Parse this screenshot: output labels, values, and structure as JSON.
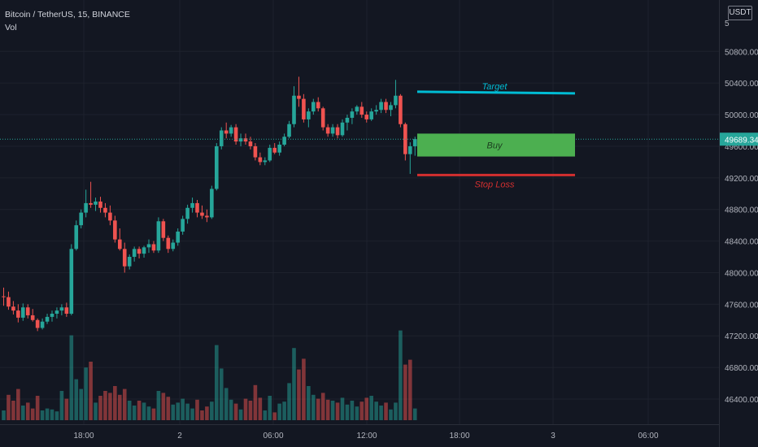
{
  "header": {
    "symbol": "Bitcoin / TetherUS, 15, BINANCE",
    "indicator": "Vol"
  },
  "currency": "USDT",
  "colors": {
    "bg": "#131722",
    "grid": "#1e222d",
    "up": "#26a69a",
    "down": "#ef5350",
    "target": "#00bcd4",
    "buy": "#4caf50",
    "stop": "#d32f2f",
    "price_line": "#26a69a"
  },
  "chart_data": {
    "type": "candlestick",
    "y_axis": {
      "ticks": [
        46400,
        46800,
        47200,
        47600,
        48000,
        48400,
        48800,
        49200,
        49600,
        50000,
        50400,
        50800
      ],
      "range": [
        46050,
        51050
      ],
      "side": "right"
    },
    "x_axis": {
      "tick_labels": [
        "18:00",
        "2",
        "06:00",
        "12:00",
        "18:00",
        "3",
        "06:00"
      ]
    },
    "last_price": "49689.34",
    "annotations": [
      {
        "label": "Target",
        "price": 50280
      },
      {
        "label": "Buy",
        "price_top": 49760,
        "price_bottom": 49470
      },
      {
        "label": "Stop Loss",
        "price": 49235
      }
    ],
    "candles": [
      [
        47700,
        47810,
        47580,
        47690
      ],
      [
        47690,
        47760,
        47530,
        47570
      ],
      [
        47570,
        47640,
        47470,
        47520
      ],
      [
        47520,
        47600,
        47370,
        47430
      ],
      [
        47430,
        47610,
        47390,
        47560
      ],
      [
        47560,
        47600,
        47420,
        47460
      ],
      [
        47460,
        47540,
        47380,
        47400
      ],
      [
        47400,
        47420,
        47260,
        47300
      ],
      [
        47300,
        47420,
        47280,
        47380
      ],
      [
        47380,
        47480,
        47350,
        47440
      ],
      [
        47440,
        47520,
        47380,
        47480
      ],
      [
        47480,
        47560,
        47420,
        47520
      ],
      [
        47520,
        47600,
        47460,
        47560
      ],
      [
        47560,
        47620,
        47440,
        47480
      ],
      [
        47480,
        48360,
        47460,
        48300
      ],
      [
        48300,
        48660,
        48280,
        48600
      ],
      [
        48600,
        48800,
        48560,
        48760
      ],
      [
        48760,
        49050,
        48700,
        48880
      ],
      [
        48880,
        49150,
        48820,
        48860
      ],
      [
        48860,
        48950,
        48780,
        48900
      ],
      [
        48900,
        48960,
        48760,
        48820
      ],
      [
        48820,
        48880,
        48700,
        48760
      ],
      [
        48760,
        48850,
        48600,
        48660
      ],
      [
        48660,
        48720,
        48380,
        48420
      ],
      [
        48420,
        48560,
        48280,
        48300
      ],
      [
        48300,
        48380,
        48000,
        48080
      ],
      [
        48080,
        48230,
        48040,
        48200
      ],
      [
        48200,
        48330,
        48140,
        48300
      ],
      [
        48300,
        48330,
        48180,
        48240
      ],
      [
        48240,
        48340,
        48190,
        48320
      ],
      [
        48320,
        48420,
        48250,
        48360
      ],
      [
        48360,
        48400,
        48250,
        48280
      ],
      [
        48280,
        48700,
        48250,
        48650
      ],
      [
        48650,
        48680,
        48400,
        48440
      ],
      [
        48440,
        48470,
        48250,
        48300
      ],
      [
        48300,
        48420,
        48270,
        48380
      ],
      [
        48380,
        48560,
        48340,
        48520
      ],
      [
        48520,
        48720,
        48480,
        48680
      ],
      [
        48680,
        48860,
        48620,
        48820
      ],
      [
        48820,
        48950,
        48760,
        48880
      ],
      [
        48880,
        48920,
        48700,
        48760
      ],
      [
        48760,
        48850,
        48680,
        48720
      ],
      [
        48720,
        48800,
        48640,
        48700
      ],
      [
        48700,
        49100,
        48680,
        49060
      ],
      [
        49060,
        49640,
        49040,
        49600
      ],
      [
        49600,
        49840,
        49560,
        49800
      ],
      [
        49800,
        49900,
        49700,
        49760
      ],
      [
        49760,
        49870,
        49720,
        49840
      ],
      [
        49840,
        49880,
        49620,
        49660
      ],
      [
        49660,
        49760,
        49600,
        49700
      ],
      [
        49700,
        49760,
        49620,
        49660
      ],
      [
        49660,
        49720,
        49560,
        49600
      ],
      [
        49600,
        49640,
        49420,
        49460
      ],
      [
        49460,
        49520,
        49360,
        49400
      ],
      [
        49400,
        49460,
        49360,
        49420
      ],
      [
        49420,
        49620,
        49400,
        49580
      ],
      [
        49580,
        49640,
        49500,
        49520
      ],
      [
        49520,
        49660,
        49480,
        49620
      ],
      [
        49620,
        49760,
        49600,
        49720
      ],
      [
        49720,
        49920,
        49700,
        49880
      ],
      [
        49880,
        50360,
        49840,
        50240
      ],
      [
        50240,
        50480,
        50100,
        50200
      ],
      [
        50200,
        50260,
        49900,
        49940
      ],
      [
        49940,
        50080,
        49840,
        50040
      ],
      [
        50040,
        50200,
        50000,
        50160
      ],
      [
        50160,
        50220,
        50040,
        50080
      ],
      [
        50080,
        50100,
        49800,
        49840
      ],
      [
        49840,
        49880,
        49720,
        49760
      ],
      [
        49760,
        49880,
        49720,
        49840
      ],
      [
        49840,
        49880,
        49700,
        49740
      ],
      [
        49740,
        49940,
        49720,
        49900
      ],
      [
        49900,
        50000,
        49800,
        49960
      ],
      [
        49960,
        50080,
        49880,
        50040
      ],
      [
        50040,
        50120,
        50000,
        50100
      ],
      [
        50100,
        50160,
        49960,
        50000
      ],
      [
        50000,
        50040,
        49900,
        49940
      ],
      [
        49940,
        50080,
        49920,
        50040
      ],
      [
        50040,
        50120,
        50000,
        50060
      ],
      [
        50060,
        50200,
        50020,
        50160
      ],
      [
        50160,
        50200,
        50020,
        50060
      ],
      [
        50060,
        50160,
        49980,
        50120
      ],
      [
        50120,
        50440,
        50080,
        50240
      ],
      [
        50240,
        50260,
        49840,
        49880
      ],
      [
        49880,
        49900,
        49420,
        49500
      ],
      [
        49500,
        49650,
        49250,
        49600
      ],
      [
        49600,
        49720,
        49480,
        49690
      ]
    ],
    "volume": [
      [
        0.1,
        0
      ],
      [
        0.26,
        1
      ],
      [
        0.2,
        1
      ],
      [
        0.32,
        1
      ],
      [
        0.15,
        0
      ],
      [
        0.18,
        1
      ],
      [
        0.12,
        1
      ],
      [
        0.25,
        1
      ],
      [
        0.1,
        0
      ],
      [
        0.12,
        0
      ],
      [
        0.11,
        0
      ],
      [
        0.09,
        0
      ],
      [
        0.3,
        0
      ],
      [
        0.22,
        1
      ],
      [
        0.87,
        0
      ],
      [
        0.42,
        0
      ],
      [
        0.32,
        0
      ],
      [
        0.54,
        0
      ],
      [
        0.6,
        1
      ],
      [
        0.18,
        0
      ],
      [
        0.25,
        1
      ],
      [
        0.3,
        1
      ],
      [
        0.28,
        1
      ],
      [
        0.35,
        1
      ],
      [
        0.26,
        1
      ],
      [
        0.32,
        1
      ],
      [
        0.2,
        0
      ],
      [
        0.15,
        0
      ],
      [
        0.2,
        1
      ],
      [
        0.18,
        0
      ],
      [
        0.14,
        0
      ],
      [
        0.12,
        1
      ],
      [
        0.3,
        0
      ],
      [
        0.28,
        1
      ],
      [
        0.24,
        1
      ],
      [
        0.16,
        0
      ],
      [
        0.18,
        0
      ],
      [
        0.22,
        0
      ],
      [
        0.17,
        0
      ],
      [
        0.12,
        0
      ],
      [
        0.21,
        1
      ],
      [
        0.1,
        1
      ],
      [
        0.14,
        1
      ],
      [
        0.19,
        0
      ],
      [
        0.77,
        0
      ],
      [
        0.53,
        0
      ],
      [
        0.33,
        0
      ],
      [
        0.21,
        0
      ],
      [
        0.17,
        1
      ],
      [
        0.11,
        0
      ],
      [
        0.22,
        1
      ],
      [
        0.2,
        1
      ],
      [
        0.36,
        1
      ],
      [
        0.23,
        1
      ],
      [
        0.1,
        0
      ],
      [
        0.25,
        0
      ],
      [
        0.08,
        1
      ],
      [
        0.17,
        0
      ],
      [
        0.19,
        0
      ],
      [
        0.38,
        0
      ],
      [
        0.74,
        0
      ],
      [
        0.52,
        1
      ],
      [
        0.63,
        1
      ],
      [
        0.35,
        0
      ],
      [
        0.26,
        0
      ],
      [
        0.22,
        1
      ],
      [
        0.28,
        1
      ],
      [
        0.21,
        1
      ],
      [
        0.2,
        0
      ],
      [
        0.18,
        1
      ],
      [
        0.23,
        0
      ],
      [
        0.16,
        0
      ],
      [
        0.2,
        0
      ],
      [
        0.14,
        0
      ],
      [
        0.19,
        1
      ],
      [
        0.23,
        1
      ],
      [
        0.25,
        0
      ],
      [
        0.19,
        0
      ],
      [
        0.15,
        0
      ],
      [
        0.18,
        1
      ],
      [
        0.11,
        0
      ],
      [
        0.18,
        0
      ],
      [
        0.92,
        0
      ],
      [
        0.57,
        1
      ],
      [
        0.62,
        1
      ],
      [
        0.12,
        0
      ]
    ]
  }
}
